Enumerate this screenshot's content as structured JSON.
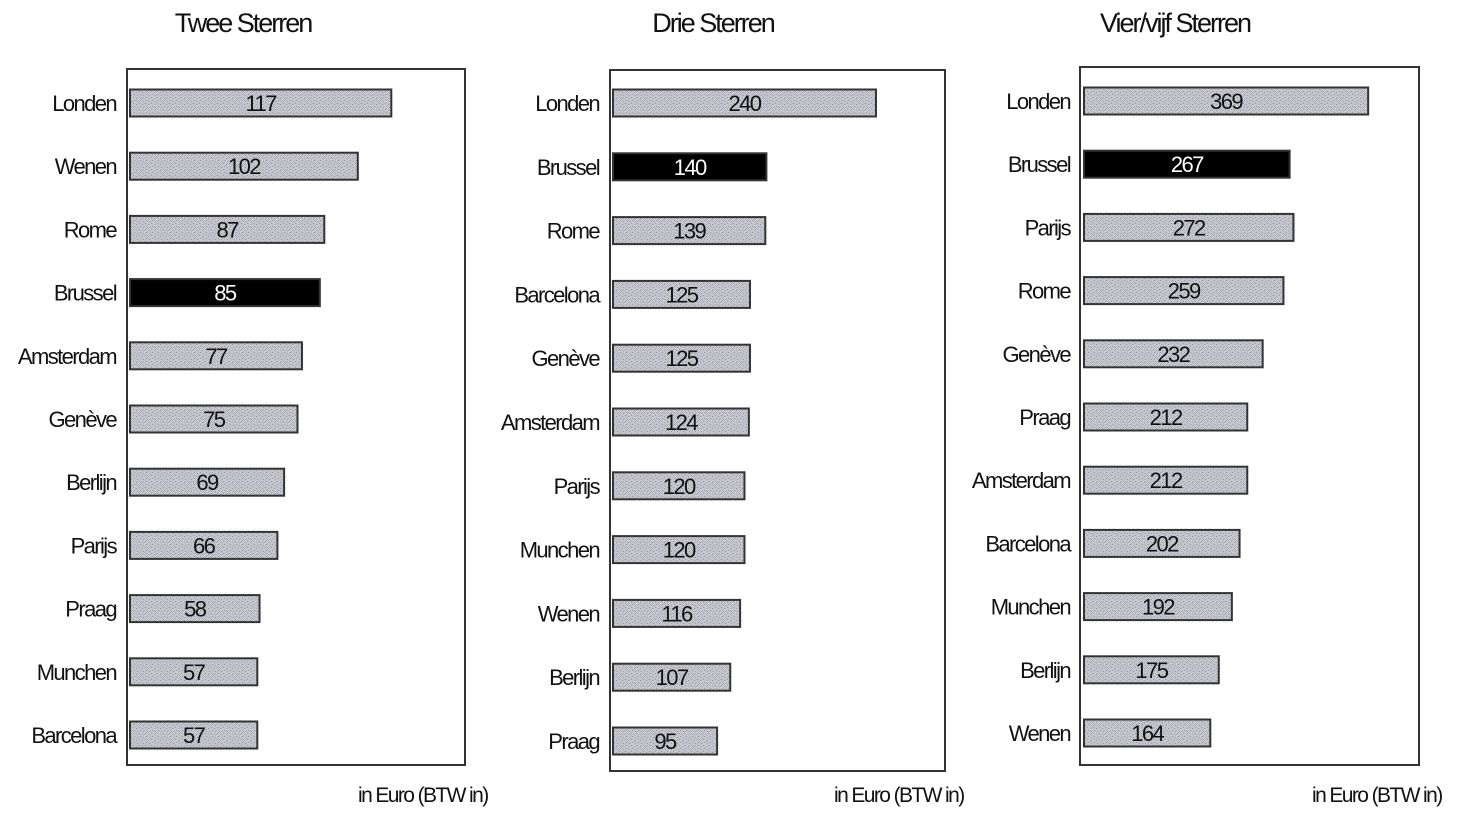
{
  "chart_data": [
    {
      "type": "bar",
      "title": "Twee Sterren",
      "xlabel": "in Euro (BTW in)",
      "categories": [
        "Londen",
        "Wenen",
        "Rome",
        "Brussel",
        "Amsterdam",
        "Genève",
        "Berlijn",
        "Parijs",
        "Praag",
        "Munchen",
        "Barcelona"
      ],
      "values": [
        117,
        102,
        87,
        85,
        77,
        75,
        69,
        66,
        58,
        57,
        57
      ],
      "highlight": "Brussel",
      "xlim": [
        0,
        150
      ],
      "colors": {
        "bar": "#c3c3cb",
        "highlight": "#000000",
        "frame": "#333333"
      }
    },
    {
      "type": "bar",
      "title": "Drie Sterren",
      "xlabel": "in Euro (BTW in)",
      "categories": [
        "Londen",
        "Brussel",
        "Rome",
        "Barcelona",
        "Genève",
        "Amsterdam",
        "Parijs",
        "Munchen",
        "Wenen",
        "Berlijn",
        "Praag"
      ],
      "values": [
        240,
        140,
        139,
        125,
        125,
        124,
        120,
        120,
        116,
        107,
        95
      ],
      "highlight": "Brussel",
      "xlim": [
        0,
        303
      ],
      "colors": {
        "bar": "#c3c3cb",
        "highlight": "#000000",
        "frame": "#333333"
      }
    },
    {
      "type": "bar",
      "title": "Vier/vijf Sterren",
      "xlabel": "in Euro (BTW in)",
      "categories": [
        "Londen",
        "Brussel",
        "Parijs",
        "Rome",
        "Genève",
        "Praag",
        "Amsterdam",
        "Barcelona",
        "Munchen",
        "Berlijn",
        "Wenen"
      ],
      "values": [
        369,
        267,
        272,
        259,
        232,
        212,
        212,
        202,
        192,
        175,
        164
      ],
      "highlight": "Brussel",
      "xlim": [
        0,
        435
      ],
      "colors": {
        "bar": "#c3c3cb",
        "highlight": "#000000",
        "frame": "#333333"
      }
    }
  ]
}
